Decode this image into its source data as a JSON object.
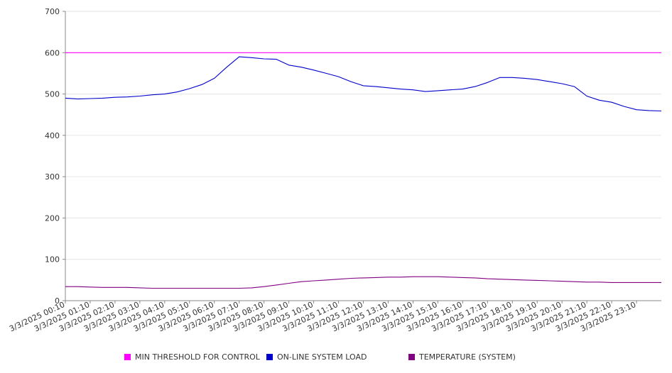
{
  "chart_data": {
    "type": "line",
    "title": "",
    "xlabel": "",
    "ylabel": "",
    "ylim": [
      0,
      700
    ],
    "yticks": [
      "0",
      "100",
      "200",
      "300",
      "400",
      "500",
      "600",
      "700"
    ],
    "xtick_labels": [
      "3/3/2025 00:10",
      "3/3/2025 01:10",
      "3/3/2025 02:10",
      "3/3/2025 03:10",
      "3/3/2025 04:10",
      "3/3/2025 05:10",
      "3/3/2025 06:10",
      "3/3/2025 07:10",
      "3/3/2025 08:10",
      "3/3/2025 09:10",
      "3/3/2025 10:10",
      "3/3/2025 11:10",
      "3/3/2025 12:10",
      "3/3/2025 13:10",
      "3/3/2025 14:10",
      "3/3/2025 15:10",
      "3/3/2025 16:10",
      "3/3/2025 17:10",
      "3/3/2025 18:10",
      "3/3/2025 19:10",
      "3/3/2025 20:10",
      "3/3/2025 21:10",
      "3/3/2025 22:10",
      "3/3/2025 23:10"
    ],
    "x": [
      "00:10",
      "00:40",
      "01:10",
      "01:40",
      "02:10",
      "02:40",
      "03:10",
      "03:40",
      "04:10",
      "04:40",
      "05:10",
      "05:40",
      "06:10",
      "06:40",
      "07:10",
      "07:40",
      "08:10",
      "08:40",
      "09:10",
      "09:40",
      "10:10",
      "10:40",
      "11:10",
      "11:40",
      "12:10",
      "12:40",
      "13:10",
      "13:40",
      "14:10",
      "14:40",
      "15:10",
      "15:40",
      "16:10",
      "16:40",
      "17:10",
      "17:40",
      "18:10",
      "18:40",
      "19:10",
      "19:40",
      "20:10",
      "20:40",
      "21:10",
      "21:40",
      "22:10",
      "22:40",
      "23:10",
      "23:40",
      "24:00"
    ],
    "grid": true,
    "legend_position": "bottom",
    "series": [
      {
        "name": "MIN THRESHOLD FOR CONTROL",
        "color": "#ff00ff",
        "values": [
          600,
          600,
          600,
          600,
          600,
          600,
          600,
          600,
          600,
          600,
          600,
          600,
          600,
          600,
          600,
          600,
          600,
          600,
          600,
          600,
          600,
          600,
          600,
          600,
          600,
          600,
          600,
          600,
          600,
          600,
          600,
          600,
          600,
          600,
          600,
          600,
          600,
          600,
          600,
          600,
          600,
          600,
          600,
          600,
          600,
          600,
          600,
          600,
          600
        ]
      },
      {
        "name": "ON-LINE SYSTEM LOAD",
        "color": "#0000cc",
        "values": [
          490,
          488,
          489,
          490,
          492,
          493,
          495,
          498,
          500,
          505,
          513,
          523,
          538,
          565,
          590,
          588,
          585,
          584,
          570,
          565,
          558,
          550,
          542,
          530,
          520,
          518,
          515,
          512,
          510,
          506,
          508,
          510,
          512,
          518,
          528,
          540,
          540,
          538,
          535,
          530,
          525,
          518,
          495,
          485,
          480,
          470,
          462,
          460,
          459
        ]
      },
      {
        "name": "TEMPERATURE (SYSTEM)",
        "color": "#800080",
        "values": [
          34,
          34,
          33,
          32,
          32,
          32,
          31,
          30,
          30,
          30,
          30,
          30,
          30,
          30,
          30,
          31,
          34,
          38,
          42,
          46,
          48,
          50,
          52,
          54,
          55,
          56,
          57,
          57,
          58,
          58,
          58,
          57,
          56,
          55,
          53,
          52,
          51,
          50,
          49,
          48,
          47,
          46,
          45,
          45,
          44,
          44,
          44,
          44,
          44
        ]
      }
    ]
  },
  "legend": {
    "threshold_label": "MIN THRESHOLD FOR CONTROL",
    "load_label": "ON-LINE SYSTEM LOAD",
    "temp_label": "TEMPERATURE (SYSTEM)"
  }
}
